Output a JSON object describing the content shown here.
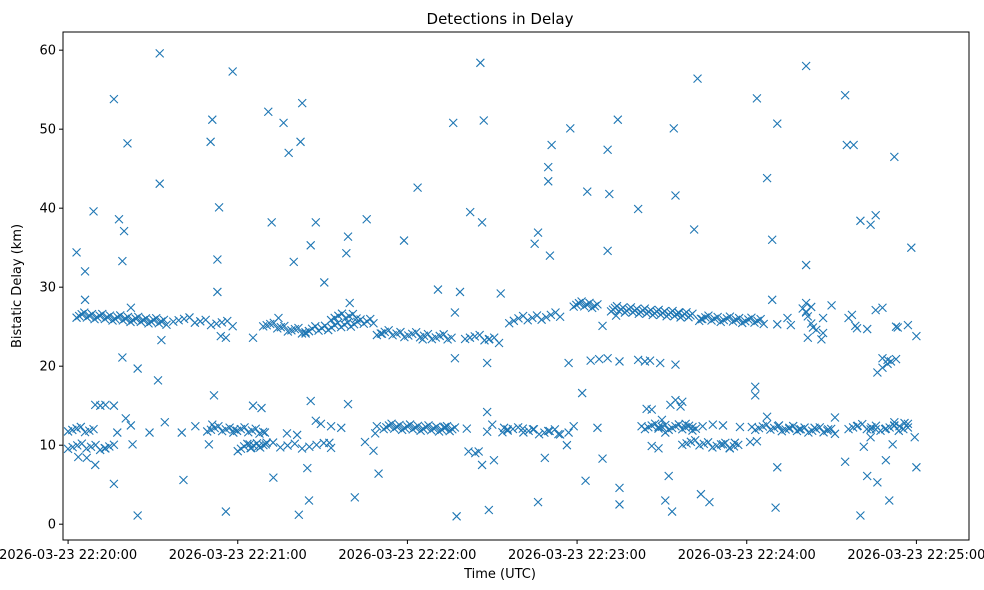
{
  "chart_data": {
    "type": "scatter",
    "title": "Detections in Delay",
    "xlabel": "Time (UTC)",
    "ylabel": "Bistatic Delay (km)",
    "marker": "x",
    "color": "#1f77b4",
    "xlim": [
      -0.03,
      5.31
    ],
    "ylim": [
      -2,
      62.3
    ],
    "x_ticks": [
      {
        "value": 0,
        "label": "2026-03-23 22:20:00"
      },
      {
        "value": 1,
        "label": "2026-03-23 22:21:00"
      },
      {
        "value": 2,
        "label": "2026-03-23 22:22:00"
      },
      {
        "value": 3,
        "label": "2026-03-23 22:23:00"
      },
      {
        "value": 4,
        "label": "2026-03-23 22:24:00"
      },
      {
        "value": 5,
        "label": "2026-03-23 22:25:00"
      }
    ],
    "y_ticks": [
      0,
      10,
      20,
      30,
      40,
      50,
      60
    ],
    "x_unit": "minutes after 2026-03-23 22:20:00",
    "points": [
      [
        0.05,
        34.4
      ],
      [
        0.1,
        32
      ],
      [
        0.15,
        39.6
      ],
      [
        0.1,
        28.4
      ],
      [
        0.3,
        38.6
      ],
      [
        0.33,
        37.1
      ],
      [
        0.35,
        48.2
      ],
      [
        0.27,
        53.8
      ],
      [
        0.54,
        59.6
      ],
      [
        0.54,
        43.1
      ],
      [
        0.32,
        33.3
      ],
      [
        0.37,
        27.4
      ],
      [
        0.41,
        19.7
      ],
      [
        0.32,
        21.1
      ],
      [
        0.53,
        18.2
      ],
      [
        0.55,
        23.3
      ],
      [
        0.48,
        11.6
      ],
      [
        0.57,
        12.9
      ],
      [
        0.27,
        5.1
      ],
      [
        0.41,
        1.1
      ],
      [
        0.34,
        13.4
      ],
      [
        0.37,
        12.5
      ],
      [
        0.22,
        15.1
      ],
      [
        0.16,
        15.1
      ],
      [
        0.19,
        15.0
      ],
      [
        0.27,
        15.0
      ],
      [
        0.11,
        8.4
      ],
      [
        0.16,
        7.5
      ],
      [
        0.06,
        8.5
      ],
      [
        0.29,
        11.6
      ],
      [
        0.38,
        10.1
      ],
      [
        0.22,
        9.6
      ],
      [
        0.67,
        11.6
      ],
      [
        0.68,
        5.6
      ],
      [
        0.75,
        12.4
      ],
      [
        0.85,
        12.6
      ],
      [
        0.83,
        10.1
      ],
      [
        0.88,
        33.5
      ],
      [
        0.88,
        29.4
      ],
      [
        0.9,
        23.8
      ],
      [
        0.84,
        48.4
      ],
      [
        0.85,
        51.2
      ],
      [
        0.89,
        40.1
      ],
      [
        0.93,
        23.6
      ],
      [
        1.09,
        23.6
      ],
      [
        0.93,
        1.6
      ],
      [
        0.98,
        12.0
      ],
      [
        1.07,
        10.1
      ],
      [
        0.86,
        16.3
      ],
      [
        1.09,
        15.0
      ],
      [
        1.14,
        14.7
      ],
      [
        1.24,
        26.1
      ],
      [
        0.97,
        57.3
      ],
      [
        1.18,
        52.2
      ],
      [
        1.2,
        38.2
      ],
      [
        1.27,
        50.8
      ],
      [
        1.3,
        47.0
      ],
      [
        1.37,
        48.4
      ],
      [
        1.38,
        53.3
      ],
      [
        1.43,
        35.3
      ],
      [
        1.46,
        38.2
      ],
      [
        1.51,
        30.6
      ],
      [
        1.33,
        33.2
      ],
      [
        1.42,
        3.0
      ],
      [
        1.41,
        7.1
      ],
      [
        1.36,
        1.2
      ],
      [
        1.21,
        5.9
      ],
      [
        1.16,
        11.6
      ],
      [
        1.29,
        11.5
      ],
      [
        1.35,
        11.3
      ],
      [
        1.43,
        15.6
      ],
      [
        1.46,
        13.1
      ],
      [
        1.49,
        12.7
      ],
      [
        1.55,
        12.4
      ],
      [
        1.54,
        10.3
      ],
      [
        1.65,
        15.2
      ],
      [
        1.61,
        12.2
      ],
      [
        1.75,
        10.4
      ],
      [
        1.8,
        9.3
      ],
      [
        1.83,
        6.4
      ],
      [
        1.81,
        11.5
      ],
      [
        1.82,
        12.4
      ],
      [
        1.69,
        3.4
      ],
      [
        1.66,
        28.0
      ],
      [
        1.65,
        36.4
      ],
      [
        1.64,
        34.3
      ],
      [
        1.76,
        38.6
      ],
      [
        1.85,
        24.1
      ],
      [
        1.98,
        35.9
      ],
      [
        2.06,
        42.6
      ],
      [
        2.09,
        23.4
      ],
      [
        2.18,
        29.7
      ],
      [
        2.28,
        26.8
      ],
      [
        2.31,
        29.4
      ],
      [
        2.37,
        39.5
      ],
      [
        2.44,
        38.2
      ],
      [
        2.45,
        51.1
      ],
      [
        2.27,
        50.8
      ],
      [
        2.43,
        58.4
      ],
      [
        2.48,
        23.4
      ],
      [
        2.47,
        20.4
      ],
      [
        2.55,
        29.2
      ],
      [
        2.28,
        21.0
      ],
      [
        2.36,
        9.2
      ],
      [
        2.44,
        7.5
      ],
      [
        2.42,
        9.2
      ],
      [
        2.51,
        8.1
      ],
      [
        2.5,
        12.6
      ],
      [
        2.47,
        14.2
      ],
      [
        2.47,
        11.7
      ],
      [
        2.48,
        1.8
      ],
      [
        2.29,
        1.0
      ],
      [
        2.4,
        9.0
      ],
      [
        2.35,
        12.1
      ],
      [
        2.22,
        12.3
      ],
      [
        2.57,
        12.2
      ],
      [
        2.59,
        12.0
      ],
      [
        2.68,
        12.1
      ],
      [
        2.74,
        12.0
      ],
      [
        2.83,
        11.8
      ],
      [
        2.77,
        2.8
      ],
      [
        2.81,
        8.4
      ],
      [
        2.89,
        11.4
      ],
      [
        2.95,
        11.6
      ],
      [
        2.94,
        10.0
      ],
      [
        2.98,
        12.4
      ],
      [
        3.05,
        5.5
      ],
      [
        3.03,
        16.6
      ],
      [
        3.15,
        8.3
      ],
      [
        3.12,
        12.2
      ],
      [
        3.25,
        4.6
      ],
      [
        3.25,
        2.5
      ],
      [
        2.84,
        34.0
      ],
      [
        2.75,
        35.5
      ],
      [
        2.77,
        36.9
      ],
      [
        2.83,
        43.4
      ],
      [
        2.83,
        45.2
      ],
      [
        2.85,
        48.0
      ],
      [
        2.96,
        50.1
      ],
      [
        3.06,
        42.1
      ],
      [
        3.24,
        51.2
      ],
      [
        3.18,
        47.4
      ],
      [
        3.19,
        41.8
      ],
      [
        3.18,
        34.6
      ],
      [
        3.36,
        39.9
      ],
      [
        3.23,
        26.4
      ],
      [
        3.15,
        25.1
      ],
      [
        3.08,
        20.7
      ],
      [
        3.13,
        20.9
      ],
      [
        3.18,
        21.0
      ],
      [
        2.95,
        20.4
      ],
      [
        3.25,
        20.6
      ],
      [
        3.36,
        20.8
      ],
      [
        3.4,
        20.6
      ],
      [
        3.43,
        20.7
      ],
      [
        3.49,
        20.4
      ],
      [
        3.58,
        20.2
      ],
      [
        3.6,
        26.7
      ],
      [
        3.58,
        41.6
      ],
      [
        3.57,
        50.1
      ],
      [
        3.69,
        37.3
      ],
      [
        3.71,
        56.4
      ],
      [
        3.73,
        26.0
      ],
      [
        3.73,
        3.8
      ],
      [
        3.78,
        2.8
      ],
      [
        3.56,
        1.6
      ],
      [
        3.54,
        6.1
      ],
      [
        3.52,
        3.0
      ],
      [
        3.48,
        9.6
      ],
      [
        3.44,
        9.9
      ],
      [
        3.5,
        13.2
      ],
      [
        3.48,
        12.3
      ],
      [
        3.55,
        15.1
      ],
      [
        3.58,
        15.7
      ],
      [
        3.61,
        14.9
      ],
      [
        3.62,
        15.5
      ],
      [
        3.44,
        14.5
      ],
      [
        3.41,
        14.6
      ],
      [
        3.38,
        12.4
      ],
      [
        3.52,
        11.6
      ],
      [
        3.64,
        12.7
      ],
      [
        3.68,
        12.3
      ],
      [
        3.74,
        12.4
      ],
      [
        3.8,
        12.6
      ],
      [
        3.86,
        12.5
      ],
      [
        3.96,
        12.3
      ],
      [
        4.03,
        12.3
      ],
      [
        3.86,
        10.1
      ],
      [
        3.9,
        9.6
      ],
      [
        3.93,
        10.3
      ],
      [
        4.02,
        10.4
      ],
      [
        4.06,
        10.5
      ],
      [
        4.05,
        17.4
      ],
      [
        4.05,
        16.3
      ],
      [
        4.17,
        2.1
      ],
      [
        4.18,
        7.2
      ],
      [
        4.12,
        13.6
      ],
      [
        4.19,
        12.5
      ],
      [
        4.25,
        12.1
      ],
      [
        4.31,
        12.0
      ],
      [
        4.4,
        12.2
      ],
      [
        4.48,
        12.0
      ],
      [
        4.52,
        13.5
      ],
      [
        4.58,
        7.9
      ],
      [
        4.65,
        12.4
      ],
      [
        4.73,
        12.0
      ],
      [
        4.76,
        12.0
      ],
      [
        4.82,
        12.1
      ],
      [
        4.67,
        1.1
      ],
      [
        4.69,
        9.8
      ],
      [
        4.73,
        11.0
      ],
      [
        4.71,
        6.1
      ],
      [
        4.77,
        5.3
      ],
      [
        4.82,
        8.1
      ],
      [
        4.84,
        3.0
      ],
      [
        4.86,
        10.1
      ],
      [
        4.87,
        12.5
      ],
      [
        4.93,
        12.8
      ],
      [
        4.99,
        11.0
      ],
      [
        5.0,
        7.2
      ],
      [
        4.15,
        36.0
      ],
      [
        4.18,
        50.7
      ],
      [
        4.15,
        28.4
      ],
      [
        4.24,
        26.1
      ],
      [
        4.18,
        25.3
      ],
      [
        4.26,
        25.2
      ],
      [
        4.35,
        32.8
      ],
      [
        4.36,
        23.6
      ],
      [
        4.45,
        24.2
      ],
      [
        4.45,
        26.1
      ],
      [
        4.5,
        27.7
      ],
      [
        4.35,
        26.9
      ],
      [
        4.35,
        28.0
      ],
      [
        4.38,
        27.5
      ],
      [
        4.33,
        27.3
      ],
      [
        4.35,
        26.8
      ],
      [
        4.36,
        26.3
      ],
      [
        4.38,
        25.4
      ],
      [
        4.39,
        24.9
      ],
      [
        4.41,
        24.6
      ],
      [
        4.44,
        23.4
      ],
      [
        4.06,
        53.9
      ],
      [
        4.12,
        43.8
      ],
      [
        4.35,
        58.0
      ],
      [
        4.59,
        48.0
      ],
      [
        4.63,
        48.0
      ],
      [
        4.58,
        54.3
      ],
      [
        4.67,
        38.4
      ],
      [
        4.73,
        37.9
      ],
      [
        4.76,
        39.1
      ],
      [
        4.87,
        46.5
      ],
      [
        4.77,
        19.2
      ],
      [
        4.83,
        20.8
      ],
      [
        4.88,
        20.9
      ],
      [
        4.97,
        35.0
      ],
      [
        5.0,
        23.8
      ],
      [
        4.95,
        25.2
      ],
      [
        4.88,
        25.0
      ],
      [
        4.8,
        27.4
      ],
      [
        4.76,
        27.1
      ],
      [
        4.64,
        25.1
      ],
      [
        4.6,
        26.1
      ],
      [
        4.62,
        26.5
      ],
      [
        4.65,
        24.8
      ],
      [
        4.71,
        24.7
      ],
      [
        4.8,
        21.0
      ],
      [
        4.83,
        20.3
      ],
      [
        4.85,
        20.6
      ],
      [
        4.8,
        19.8
      ],
      [
        4.87,
        12.9
      ],
      [
        4.9,
        12.4
      ],
      [
        4.95,
        12.7
      ],
      [
        4.89,
        24.9
      ]
    ],
    "bands": [
      {
        "x_start": 0.05,
        "x_end": 0.58,
        "y_start": 26.5,
        "y_end": 25.6,
        "count": 36
      },
      {
        "x_start": 0.62,
        "x_end": 0.97,
        "y_start": 26.0,
        "y_end": 25.3,
        "count": 12
      },
      {
        "x_start": 1.15,
        "x_end": 1.42,
        "y_start": 25.4,
        "y_end": 24.2,
        "count": 14
      },
      {
        "x_start": 1.4,
        "x_end": 1.8,
        "y_start": 24.5,
        "y_end": 25.8,
        "count": 22
      },
      {
        "x_start": 1.55,
        "x_end": 1.7,
        "y_start": 26.2,
        "y_end": 26.4,
        "count": 8
      },
      {
        "x_start": 1.82,
        "x_end": 2.26,
        "y_start": 24.3,
        "y_end": 23.6,
        "count": 20
      },
      {
        "x_start": 2.34,
        "x_end": 2.54,
        "y_start": 23.8,
        "y_end": 23.3,
        "count": 8
      },
      {
        "x_start": 2.6,
        "x_end": 2.9,
        "y_start": 25.8,
        "y_end": 26.5,
        "count": 12
      },
      {
        "x_start": 2.98,
        "x_end": 3.12,
        "y_start": 27.9,
        "y_end": 27.7,
        "count": 10
      },
      {
        "x_start": 3.2,
        "x_end": 3.68,
        "y_start": 27.3,
        "y_end": 26.4,
        "count": 42
      },
      {
        "x_start": 3.72,
        "x_end": 4.1,
        "y_start": 26.1,
        "y_end": 25.7,
        "count": 22
      },
      {
        "x_start": 0.0,
        "x_end": 0.15,
        "y_start": 12.1,
        "y_end": 11.8,
        "count": 7
      },
      {
        "x_start": 0.0,
        "x_end": 0.27,
        "y_start": 9.9,
        "y_end": 9.7,
        "count": 11
      },
      {
        "x_start": 0.82,
        "x_end": 1.15,
        "y_start": 12.1,
        "y_end": 11.8,
        "count": 16
      },
      {
        "x_start": 1.08,
        "x_end": 1.55,
        "y_start": 10.0,
        "y_end": 9.9,
        "count": 12
      },
      {
        "x_start": 1.0,
        "x_end": 1.17,
        "y_start": 9.6,
        "y_end": 10.2,
        "count": 10
      },
      {
        "x_start": 1.86,
        "x_end": 2.28,
        "y_start": 12.4,
        "y_end": 12.0,
        "count": 28
      },
      {
        "x_start": 2.56,
        "x_end": 2.9,
        "y_start": 12.0,
        "y_end": 11.6,
        "count": 12
      },
      {
        "x_start": 3.4,
        "x_end": 3.7,
        "y_start": 12.4,
        "y_end": 12.2,
        "count": 16
      },
      {
        "x_start": 3.62,
        "x_end": 3.95,
        "y_start": 10.4,
        "y_end": 9.8,
        "count": 14
      },
      {
        "x_start": 4.05,
        "x_end": 4.52,
        "y_start": 12.3,
        "y_end": 11.8,
        "count": 22
      },
      {
        "x_start": 4.6,
        "x_end": 4.95,
        "y_start": 12.4,
        "y_end": 12.0,
        "count": 14
      }
    ]
  }
}
